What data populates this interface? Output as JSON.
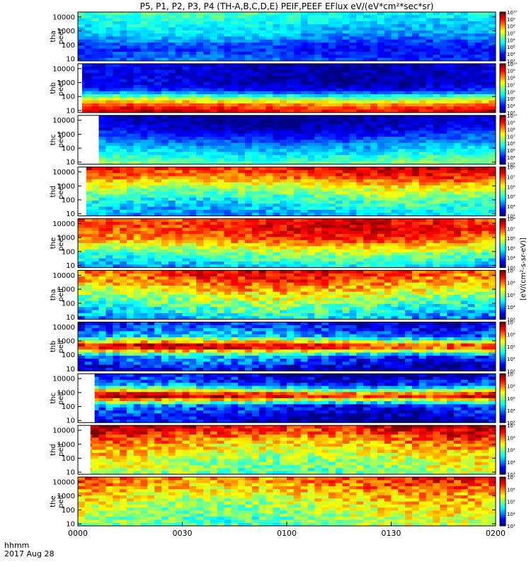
{
  "title": "P5, P1, P2, P3, P4 (TH-A,B,C,D,E) PEIF,PEEF EFlux eV/(eV*cm²*sec*sr)",
  "x_axis": {
    "unit_label": "hhmm",
    "date_label": "2017 Aug 28",
    "ticks": [
      "0000",
      "0030",
      "0100",
      "0130",
      "0200"
    ]
  },
  "colorbar_label": "[eV/(cm²-s-sr-eV)]",
  "chart_data": {
    "type": "heatmap",
    "x_range": [
      "0000",
      "0200"
    ],
    "y_scale": "log",
    "y_ticks": [
      "10",
      "100",
      "1000",
      "10000"
    ],
    "panels": [
      {
        "probe": "tha",
        "species": "peef",
        "ylabel": [
          "tha",
          "peef"
        ],
        "cb_min_exp": 3,
        "cb_max_exp": 10,
        "blank_start_frac": 0.0,
        "bands": [
          [
            0.0,
            4.5
          ],
          [
            0.25,
            4.0
          ],
          [
            0.5,
            5.0
          ],
          [
            0.75,
            5.5
          ],
          [
            1.0,
            6.0
          ]
        ]
      },
      {
        "probe": "thb",
        "species": "peef",
        "ylabel": [
          "thb",
          "peef"
        ],
        "cb_min_exp": 3,
        "cb_max_exp": 10,
        "blank_start_frac": 0.01,
        "bands": [
          [
            0.0,
            9.5
          ],
          [
            0.15,
            8.5
          ],
          [
            0.3,
            6.5
          ],
          [
            0.45,
            4.0
          ],
          [
            0.6,
            3.5
          ],
          [
            1.0,
            3.5
          ]
        ]
      },
      {
        "probe": "thc",
        "species": "peef",
        "ylabel": [
          "thc",
          "peef"
        ],
        "cb_min_exp": 3,
        "cb_max_exp": 10,
        "blank_start_frac": 0.05,
        "bands": [
          [
            0.0,
            6.5
          ],
          [
            0.25,
            5.5
          ],
          [
            0.5,
            4.5
          ],
          [
            0.75,
            3.5
          ],
          [
            1.0,
            3.2
          ]
        ]
      },
      {
        "probe": "thd",
        "species": "peef",
        "ylabel": [
          "thd",
          "peef"
        ],
        "cb_min_exp": 3,
        "cb_max_exp": 8,
        "blank_start_frac": 0.02,
        "bands": [
          [
            0.0,
            4.5
          ],
          [
            0.3,
            5.0
          ],
          [
            0.6,
            6.0
          ],
          [
            0.8,
            7.0
          ],
          [
            1.0,
            7.5
          ]
        ]
      },
      {
        "probe": "the",
        "species": "peef",
        "ylabel": [
          "the",
          "peef"
        ],
        "cb_min_exp": 3,
        "cb_max_exp": 8,
        "blank_start_frac": 0.0,
        "bands": [
          [
            0.0,
            4.5
          ],
          [
            0.3,
            5.5
          ],
          [
            0.6,
            7.0
          ],
          [
            0.85,
            7.3
          ],
          [
            1.0,
            7.2
          ]
        ]
      },
      {
        "probe": "tha",
        "species": "peif",
        "ylabel": [
          "tha",
          "peif"
        ],
        "cb_min_exp": 3,
        "cb_max_exp": 7,
        "blank_start_frac": 0.0,
        "bands": [
          [
            0.0,
            4.2
          ],
          [
            0.3,
            4.8
          ],
          [
            0.6,
            5.6
          ],
          [
            0.85,
            6.2
          ],
          [
            1.0,
            6.4
          ]
        ]
      },
      {
        "probe": "thb",
        "species": "peif",
        "ylabel": [
          "thb",
          "peif"
        ],
        "cb_min_exp": 3,
        "cb_max_exp": 7,
        "blank_start_frac": 0.0,
        "bands": [
          [
            0.0,
            3.2
          ],
          [
            0.3,
            4.0
          ],
          [
            0.5,
            6.8
          ],
          [
            0.7,
            4.2
          ],
          [
            1.0,
            3.4
          ]
        ]
      },
      {
        "probe": "thc",
        "species": "peif",
        "ylabel": [
          "thc",
          "peif"
        ],
        "cb_min_exp": 3,
        "cb_max_exp": 7,
        "blank_start_frac": 0.04,
        "bands": [
          [
            0.0,
            3.2
          ],
          [
            0.35,
            3.8
          ],
          [
            0.55,
            6.8
          ],
          [
            0.75,
            4.0
          ],
          [
            1.0,
            3.2
          ]
        ]
      },
      {
        "probe": "thd",
        "species": "peif",
        "ylabel": [
          "thd",
          "peif"
        ],
        "cb_min_exp": 3,
        "cb_max_exp": 7,
        "blank_start_frac": 0.03,
        "bands": [
          [
            0.0,
            5.0
          ],
          [
            0.3,
            5.3
          ],
          [
            0.6,
            5.8
          ],
          [
            0.85,
            6.4
          ],
          [
            1.0,
            6.8
          ]
        ]
      },
      {
        "probe": "the",
        "species": "peif",
        "ylabel": [
          "the",
          "peif"
        ],
        "cb_min_exp": 3,
        "cb_max_exp": 7,
        "blank_start_frac": 0.0,
        "bands": [
          [
            0.0,
            5.0
          ],
          [
            0.3,
            5.2
          ],
          [
            0.6,
            5.6
          ],
          [
            0.85,
            6.0
          ],
          [
            1.0,
            6.2
          ]
        ]
      }
    ]
  }
}
